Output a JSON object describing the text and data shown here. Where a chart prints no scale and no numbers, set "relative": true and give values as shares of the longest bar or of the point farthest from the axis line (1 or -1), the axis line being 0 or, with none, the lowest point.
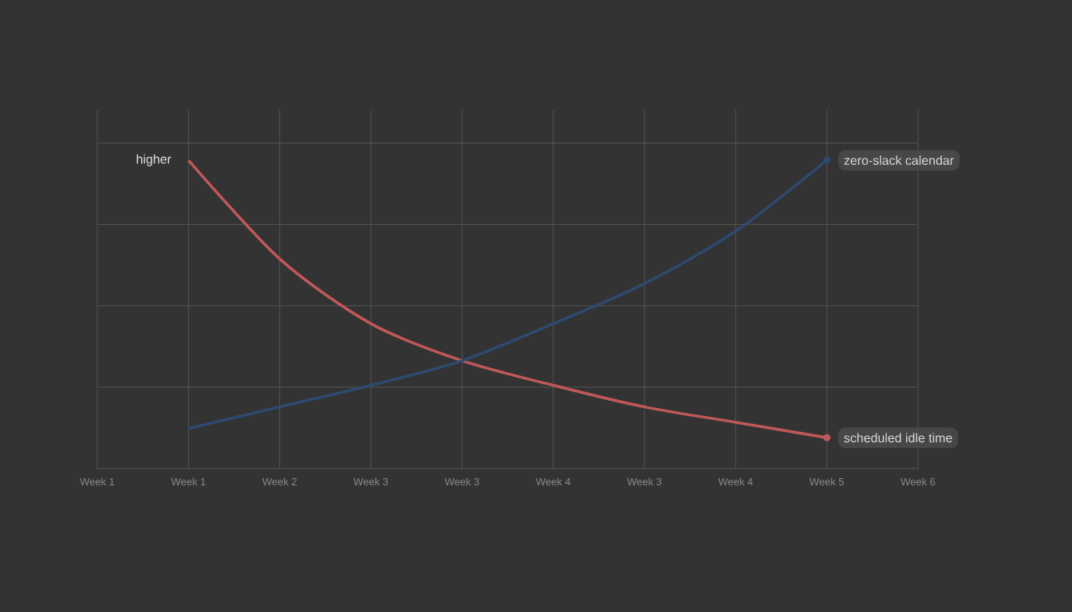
{
  "chart_data": {
    "type": "line",
    "relative": true,
    "categories": [
      "Week 1",
      "Week 1",
      "Week 2",
      "Week 3",
      "Week 3",
      "Week 4",
      "Week 3",
      "Week 4",
      "Week 5",
      "Week 6"
    ],
    "series": [
      {
        "name": "scheduled idle time",
        "color": "#c0585a",
        "values": [
          null,
          1.0,
          0.68,
          0.47,
          0.35,
          0.27,
          0.2,
          0.15,
          0.1,
          null
        ]
      },
      {
        "name": "zero-slack calendar",
        "color": "#2e4a70",
        "values": [
          null,
          0.13,
          0.2,
          0.27,
          0.35,
          0.47,
          0.6,
          0.77,
          1.0,
          null
        ]
      }
    ],
    "annotations": [
      "higher"
    ],
    "grid": true,
    "legend": false,
    "marker": "none",
    "line_style": "solid"
  }
}
